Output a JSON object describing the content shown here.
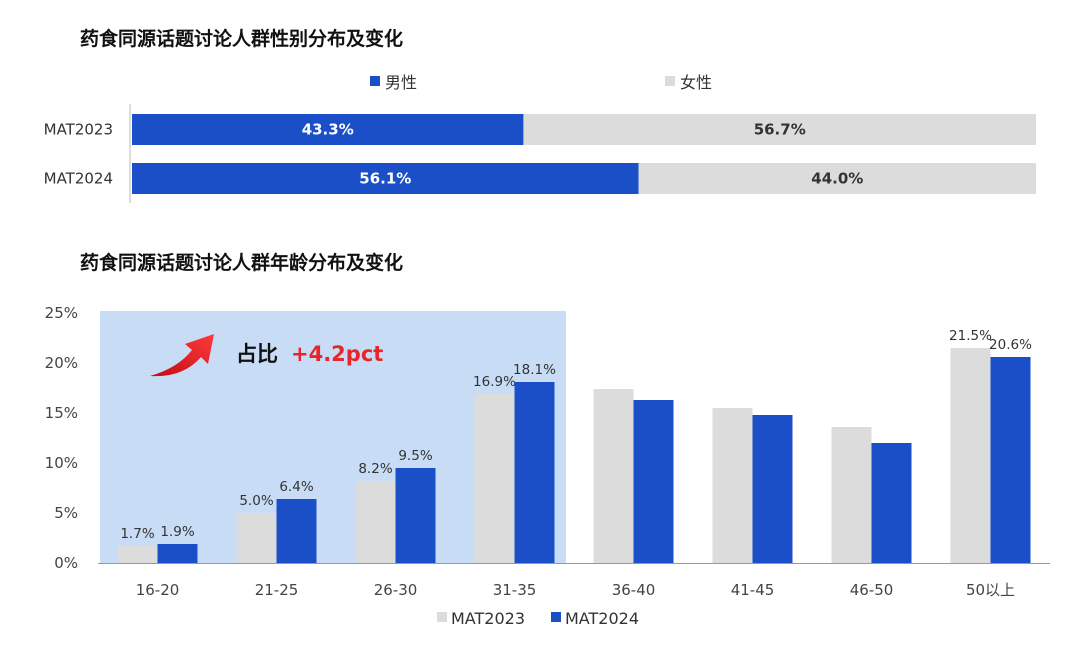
{
  "chart_data": [
    {
      "type": "bar",
      "orientation": "horizontal-stacked",
      "title": "药食同源话题讨论人群性别分布及变化",
      "categories": [
        "MAT2023",
        "MAT2024"
      ],
      "series": [
        {
          "name": "男性",
          "values": [
            43.3,
            56.1
          ],
          "labels": [
            "43.3%",
            "56.1%"
          ],
          "color": "#1b4fc8"
        },
        {
          "name": "女性",
          "values": [
            56.7,
            44.0
          ],
          "labels": [
            "56.7%",
            "44.0%"
          ],
          "color": "#dcdcdc"
        }
      ],
      "legend": "top"
    },
    {
      "type": "bar",
      "title": "药食同源话题讨论人群年龄分布及变化",
      "categories": [
        "16-20",
        "21-25",
        "26-30",
        "31-35",
        "36-40",
        "41-45",
        "46-50",
        "50以上"
      ],
      "series": [
        {
          "name": "MAT2023",
          "values": [
            1.7,
            5.0,
            8.2,
            16.9,
            17.4,
            15.5,
            13.6,
            21.5
          ],
          "labels": [
            "1.7%",
            "5.0%",
            "8.2%",
            "16.9%",
            "",
            "",
            "",
            "21.5%"
          ],
          "color": "#dcdcdc"
        },
        {
          "name": "MAT2024",
          "values": [
            1.9,
            6.4,
            9.5,
            18.1,
            16.3,
            14.8,
            12.0,
            20.6
          ],
          "labels": [
            "1.9%",
            "6.4%",
            "9.5%",
            "18.1%",
            "",
            "",
            "",
            "20.6%"
          ],
          "color": "#1b4fc8"
        }
      ],
      "yticks": [
        "0%",
        "5%",
        "10%",
        "15%",
        "20%",
        "25%"
      ],
      "ylim": [
        0,
        25
      ],
      "grid": false,
      "legend": "bottom",
      "highlight_categories": [
        "16-20",
        "21-25",
        "26-30",
        "31-35"
      ],
      "annotation": {
        "prefix": "占比",
        "value": "+4.2pct",
        "color": "#e8252b"
      }
    }
  ]
}
